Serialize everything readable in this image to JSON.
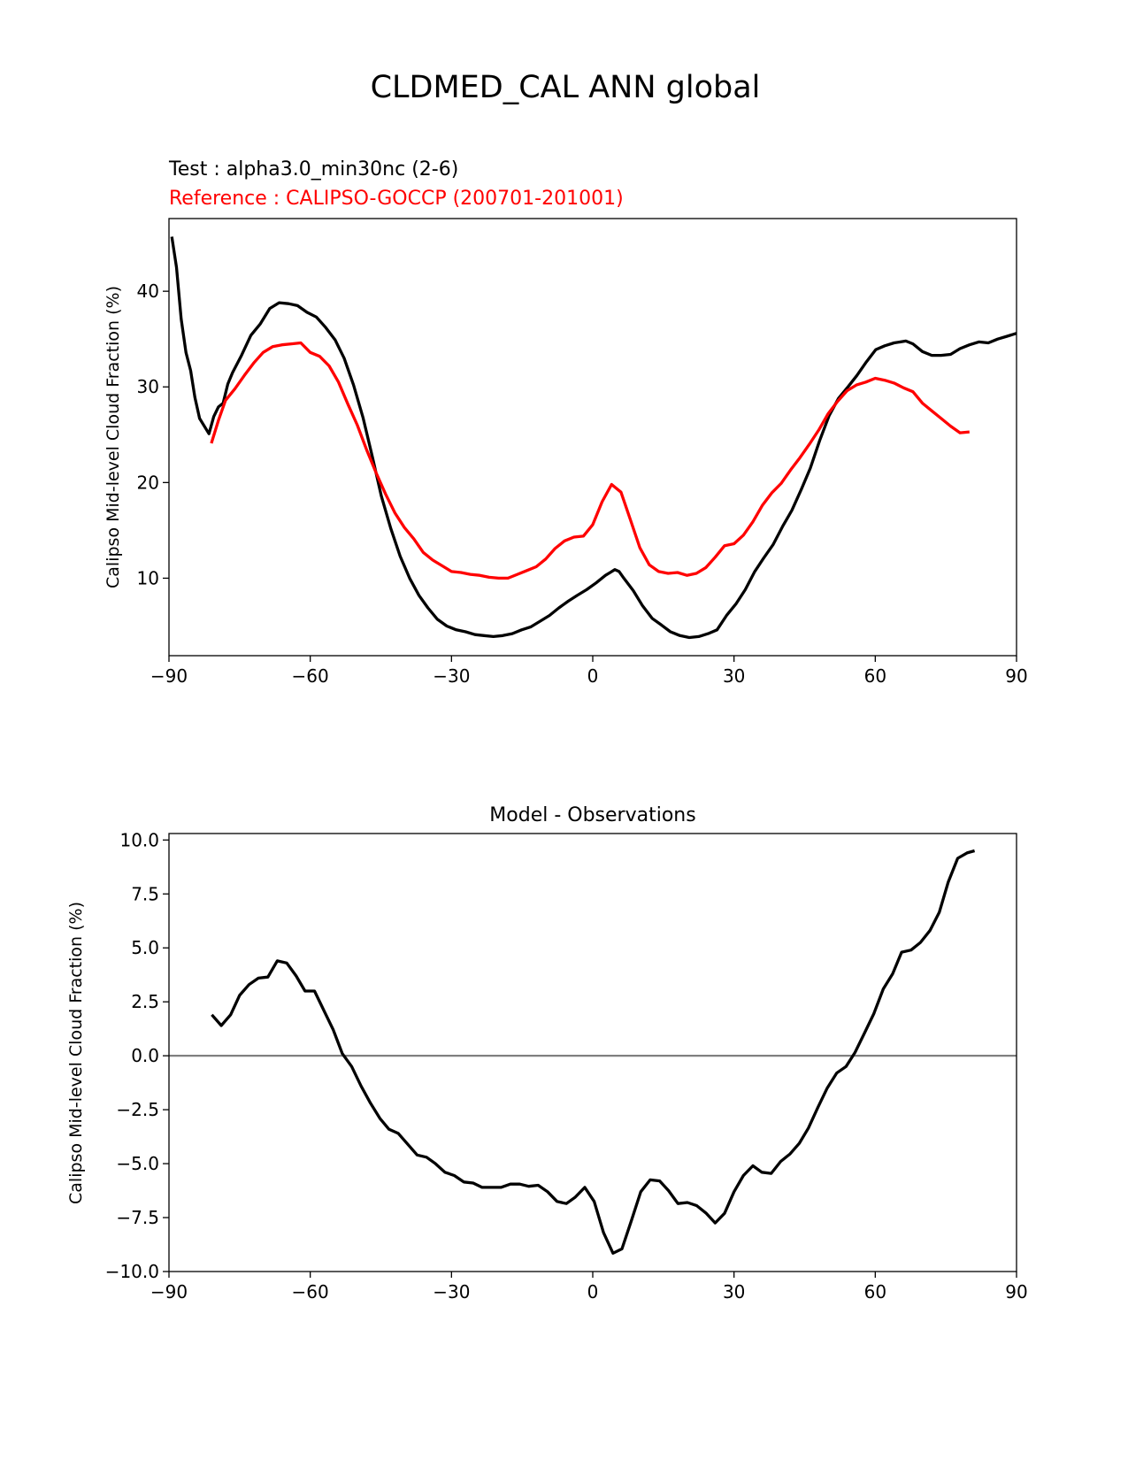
{
  "chart_data": [
    {
      "type": "line",
      "suptitle": "CLDMED_CAL ANN global",
      "title_test": "Test : alpha3.0_min30nc (2-6)",
      "title_reference": "Reference : CALIPSO-GOCCP (200701-201001)",
      "xlabel": "",
      "ylabel": "Calipso Mid-level Cloud Fraction (%)",
      "xlim": [
        -90,
        90
      ],
      "ylim": [
        1.9,
        47.6
      ],
      "xticks": [
        -90,
        -60,
        -30,
        0,
        30,
        60,
        90
      ],
      "xtick_labels": [
        "−90",
        "−60",
        "−30",
        "0",
        "30",
        "60",
        "90"
      ],
      "yticks": [
        10,
        20,
        30,
        40
      ],
      "ytick_labels": [
        "10",
        "20",
        "30",
        "40"
      ],
      "grid": false,
      "series": [
        {
          "name": "Test",
          "color": "#000000",
          "x": [
            -89.4,
            -88.4,
            -87.4,
            -86.4,
            -85.4,
            -84.5,
            -83.5,
            -81.5,
            -80.5,
            -79.5,
            -78.5,
            -77.5,
            -76.5,
            -74.6,
            -72.6,
            -70.6,
            -68.6,
            -66.6,
            -64.6,
            -62.7,
            -60.7,
            -58.7,
            -56.7,
            -54.7,
            -52.8,
            -50.8,
            -48.8,
            -46.8,
            -44.9,
            -42.9,
            -40.9,
            -38.9,
            -36.9,
            -35.0,
            -33.0,
            -31.0,
            -29.0,
            -27.0,
            -25.0,
            -23.1,
            -21.1,
            -19.1,
            -17.1,
            -15.1,
            -13.2,
            -11.2,
            -9.2,
            -7.2,
            -5.2,
            -3.3,
            -1.3,
            0.7,
            2.7,
            3.7,
            4.7,
            5.6,
            6.6,
            8.6,
            10.6,
            12.6,
            14.6,
            16.5,
            18.5,
            20.5,
            22.5,
            24.5,
            26.4,
            28.4,
            30.4,
            32.4,
            34.4,
            36.3,
            38.3,
            40.3,
            42.3,
            44.3,
            46.2,
            48.2,
            50.2,
            52.2,
            54.2,
            56.1,
            58.1,
            60.1,
            62,
            64,
            66.5,
            68,
            70,
            72,
            74,
            76,
            78,
            80,
            82,
            84,
            86,
            88,
            90
          ],
          "y": [
            45.7,
            42.5,
            37.1,
            33.6,
            31.7,
            28.9,
            26.7,
            25.1,
            26.9,
            27.9,
            28.3,
            30.3,
            31.5,
            33.3,
            35.4,
            36.6,
            38.2,
            38.8,
            38.7,
            38.5,
            37.8,
            37.3,
            36.2,
            34.9,
            33.0,
            30.2,
            26.8,
            22.7,
            18.6,
            15.2,
            12.3,
            10.0,
            8.2,
            6.9,
            5.7,
            5.0,
            4.6,
            4.4,
            4.1,
            4.0,
            3.9,
            4.0,
            4.2,
            4.6,
            4.9,
            5.5,
            6.1,
            6.9,
            7.6,
            8.2,
            8.8,
            9.5,
            10.3,
            10.6,
            10.9,
            10.7,
            10.0,
            8.7,
            7.1,
            5.8,
            5.1,
            4.4,
            4.0,
            3.8,
            3.9,
            4.2,
            4.6,
            6.1,
            7.3,
            8.8,
            10.7,
            12.1,
            13.5,
            15.4,
            17.1,
            19.3,
            21.5,
            24.4,
            27.0,
            28.8,
            30.0,
            31.2,
            32.6,
            33.9,
            34.3,
            34.6,
            34.8,
            34.5,
            33.7,
            33.3,
            33.3,
            33.4,
            34.0,
            34.4,
            34.7,
            34.6,
            35.0,
            35.3,
            35.6
          ]
        },
        {
          "name": "Reference",
          "color": "#ff0000",
          "x": [
            -81,
            -79.5,
            -78,
            -76,
            -74,
            -72,
            -70,
            -68,
            -66,
            -64,
            -62,
            -60,
            -58,
            -56,
            -54,
            -52,
            -50,
            -48,
            -46,
            -44,
            -42,
            -40,
            -38,
            -36,
            -34,
            -32,
            -30,
            -28,
            -26,
            -24,
            -22,
            -20,
            -18,
            -16,
            -14,
            -12,
            -10,
            -8,
            -6,
            -4,
            -2,
            0,
            2,
            4,
            6,
            8,
            10,
            12,
            14,
            16,
            18,
            20,
            22,
            24,
            26,
            28,
            30,
            32,
            34,
            36,
            38,
            40,
            42,
            44,
            46,
            48,
            50,
            52,
            54,
            56,
            58,
            60,
            62,
            64,
            66,
            68,
            70,
            72,
            74,
            76,
            78,
            80
          ],
          "y": [
            24.1,
            26.5,
            28.6,
            29.8,
            31.2,
            32.5,
            33.6,
            34.2,
            34.4,
            34.5,
            34.6,
            33.6,
            33.2,
            32.2,
            30.5,
            28.2,
            26.0,
            23.4,
            21.0,
            18.8,
            16.8,
            15.3,
            14.1,
            12.7,
            11.9,
            11.3,
            10.7,
            10.6,
            10.4,
            10.3,
            10.1,
            10.0,
            10.0,
            10.4,
            10.8,
            11.2,
            12.0,
            13.1,
            13.9,
            14.3,
            14.4,
            15.6,
            18.0,
            19.8,
            19.0,
            16.1,
            13.2,
            11.4,
            10.7,
            10.5,
            10.6,
            10.3,
            10.5,
            11.1,
            12.2,
            13.4,
            13.6,
            14.5,
            15.9,
            17.6,
            18.9,
            19.9,
            21.3,
            22.6,
            24.0,
            25.5,
            27.2,
            28.5,
            29.6,
            30.2,
            30.5,
            30.9,
            30.7,
            30.4,
            29.9,
            29.5,
            28.3,
            27.5,
            26.7,
            25.9,
            25.2,
            25.3
          ]
        }
      ]
    },
    {
      "type": "line",
      "title": "Model - Observations",
      "xlabel": "",
      "ylabel": "Calipso Mid-level Cloud Fraction (%)",
      "xlim": [
        -90,
        90
      ],
      "ylim": [
        -10,
        10.3
      ],
      "xticks": [
        -90,
        -60,
        -30,
        0,
        30,
        60,
        90
      ],
      "xtick_labels": [
        "−90",
        "−60",
        "−30",
        "0",
        "30",
        "60",
        "90"
      ],
      "yticks": [
        -10,
        -7.5,
        -5,
        -2.5,
        0,
        2.5,
        5,
        7.5,
        10
      ],
      "ytick_labels": [
        "−10.0",
        "−7.5",
        "−5.0",
        "−2.5",
        "0.0",
        "2.5",
        "5.0",
        "7.5",
        "10.0"
      ],
      "grid": false,
      "zero_line_color": "#808080",
      "series": [
        {
          "name": "Model - Observations",
          "color": "#000000",
          "x": [
            -80.9,
            -78.9,
            -76.9,
            -75,
            -73,
            -71,
            -69,
            -67,
            -65,
            -63,
            -61.1,
            -59.1,
            -57.1,
            -55.1,
            -53.2,
            -51.2,
            -49.2,
            -47.2,
            -45.2,
            -43.3,
            -41.3,
            -39.3,
            -37.3,
            -35.3,
            -33.4,
            -31.4,
            -29.4,
            -27.4,
            -25.4,
            -23.5,
            -21.5,
            -19.5,
            -17.5,
            -15.5,
            -13.6,
            -11.6,
            -9.6,
            -7.6,
            -5.6,
            -3.7,
            -1.7,
            0.3,
            2.3,
            4.3,
            6.2,
            8.2,
            10.2,
            12.2,
            14.2,
            16.1,
            18.1,
            20.1,
            22.1,
            24.1,
            26,
            28,
            30,
            32,
            34,
            35.9,
            37.9,
            39.9,
            41.9,
            43.9,
            45.8,
            47.8,
            49.8,
            51.8,
            53.8,
            55.7,
            57.7,
            59.7,
            61.7,
            63.7,
            65.6,
            67.6,
            69.6,
            71.6,
            73.6,
            75.5,
            77.5,
            79.5,
            81.1
          ],
          "y": [
            1.9,
            1.4,
            1.9,
            2.8,
            3.3,
            3.6,
            3.65,
            4.4,
            4.3,
            3.7,
            3.0,
            3.0,
            2.1,
            1.2,
            0.1,
            -0.5,
            -1.4,
            -2.2,
            -2.9,
            -3.4,
            -3.6,
            -4.1,
            -4.6,
            -4.7,
            -5.0,
            -5.4,
            -5.55,
            -5.85,
            -5.9,
            -6.1,
            -6.1,
            -6.1,
            -5.95,
            -5.95,
            -6.05,
            -6.0,
            -6.3,
            -6.75,
            -6.85,
            -6.55,
            -6.1,
            -6.75,
            -8.2,
            -9.15,
            -8.95,
            -7.65,
            -6.3,
            -5.75,
            -5.8,
            -6.25,
            -6.85,
            -6.8,
            -6.95,
            -7.3,
            -7.75,
            -7.3,
            -6.3,
            -5.55,
            -5.1,
            -5.4,
            -5.45,
            -4.9,
            -4.55,
            -4.05,
            -3.35,
            -2.4,
            -1.5,
            -0.8,
            -0.5,
            0.15,
            1.05,
            1.95,
            3.1,
            3.8,
            4.8,
            4.9,
            5.25,
            5.8,
            6.65,
            8.05,
            9.15,
            9.4,
            9.5
          ]
        }
      ]
    }
  ]
}
